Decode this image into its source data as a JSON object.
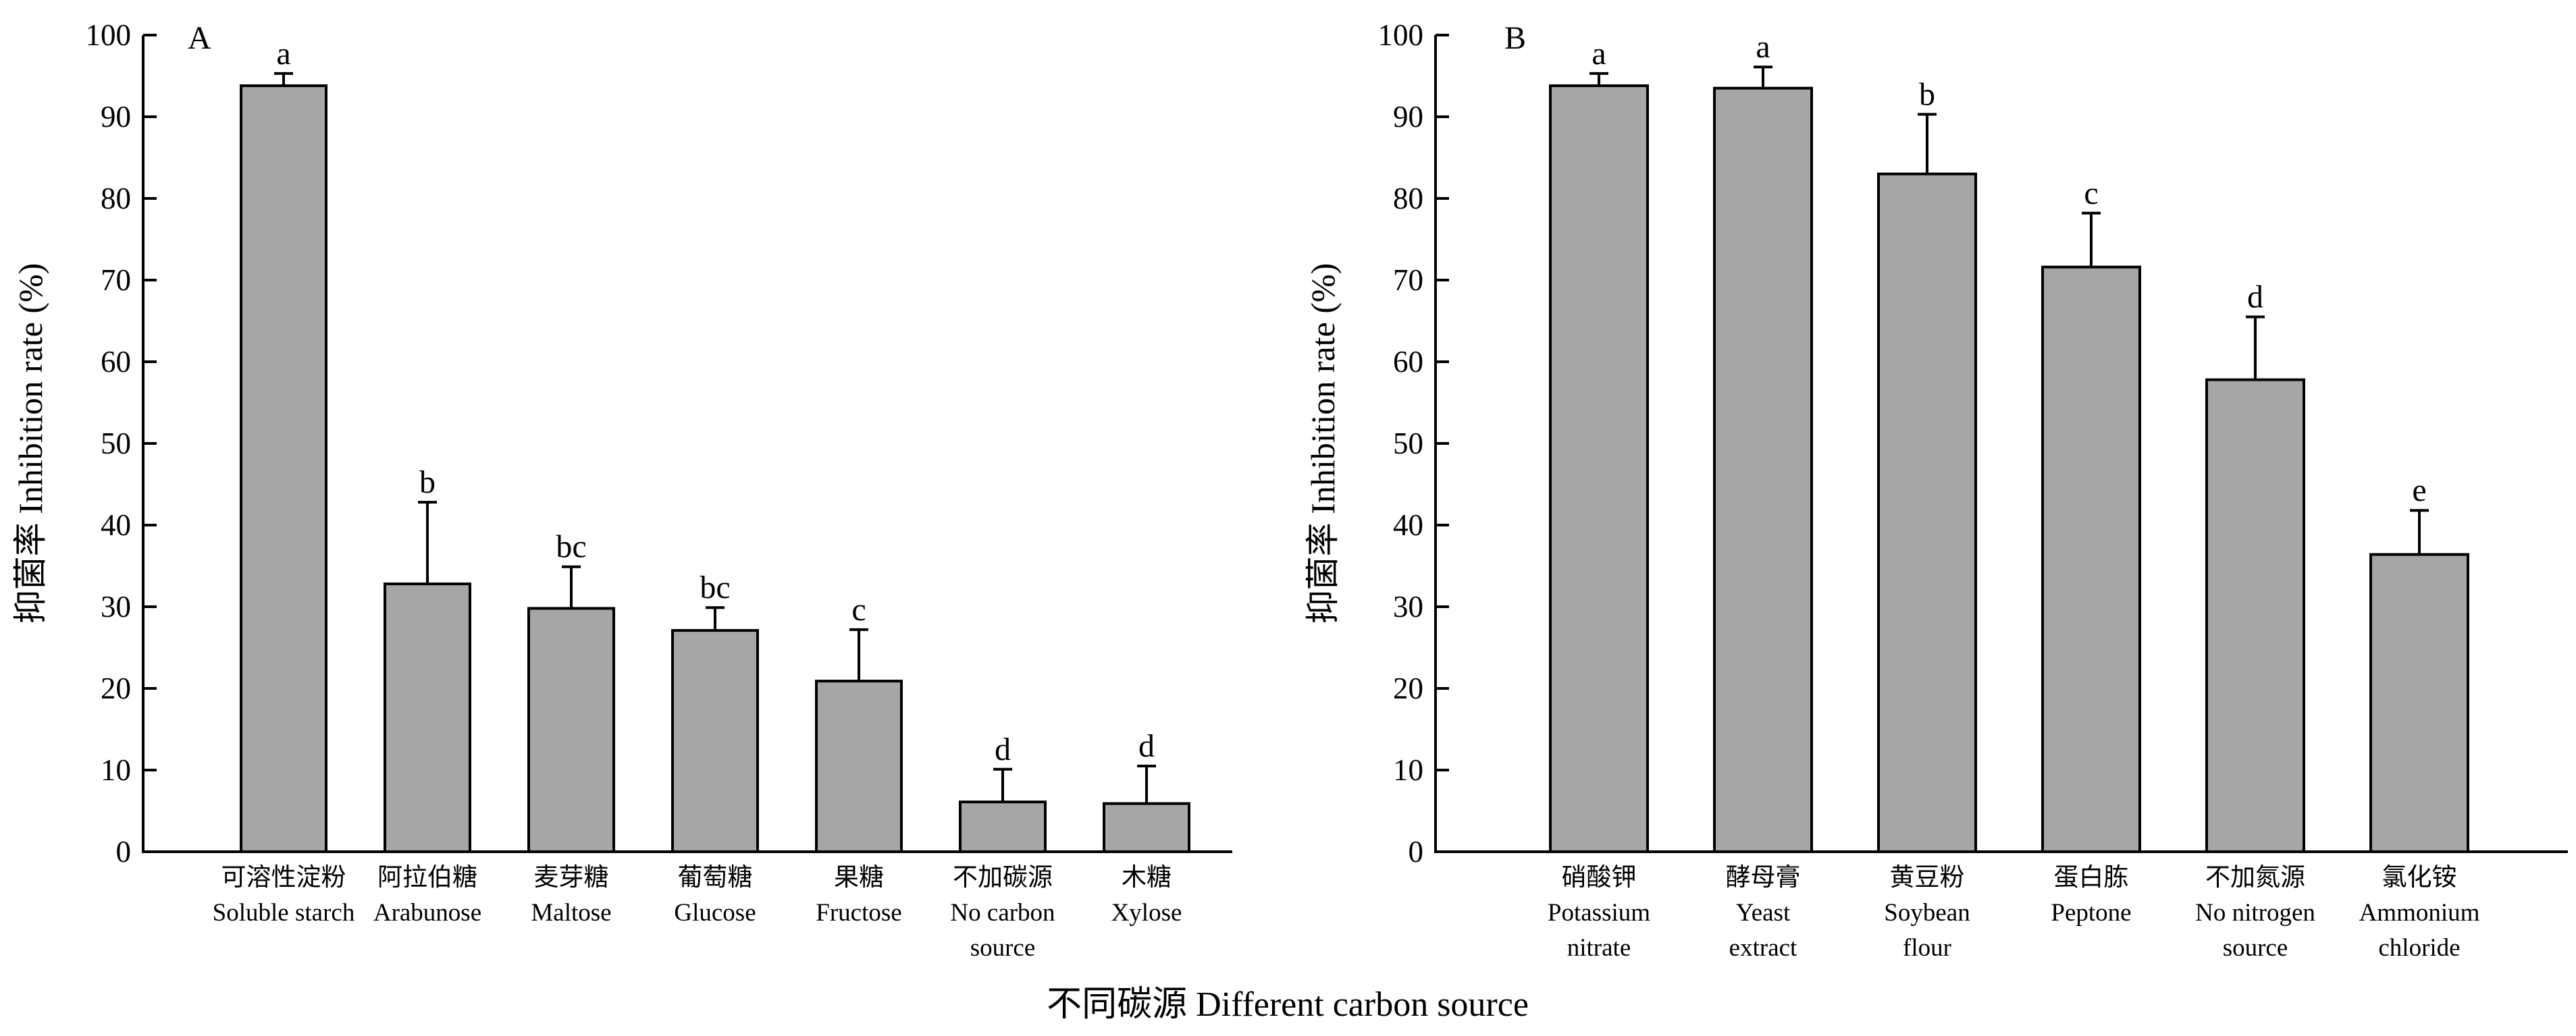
{
  "figure": {
    "common_xlabel": "不同碳源 Different carbon source"
  },
  "chart_data": [
    {
      "type": "bar",
      "panel_label": "A",
      "ylabel": "抑菌率 Inhibition rate (%)",
      "ylim": [
        0,
        100
      ],
      "yticks": [
        0,
        10,
        20,
        30,
        40,
        50,
        60,
        70,
        80,
        90,
        100
      ],
      "categories": [
        [
          "可溶性淀粉",
          "Soluble starch"
        ],
        [
          "阿拉伯糖",
          "Arabunose"
        ],
        [
          "麦芽糖",
          "Maltose"
        ],
        [
          "葡萄糖",
          "Glucose"
        ],
        [
          "果糖",
          "Fructose"
        ],
        [
          "不加碳源",
          "No carbon",
          "source"
        ],
        [
          "木糖",
          "Xylose"
        ]
      ],
      "values": [
        93.8,
        32.8,
        29.8,
        27.1,
        20.9,
        6.1,
        5.9
      ],
      "errors": [
        1.5,
        10.0,
        5.1,
        2.8,
        6.3,
        4.0,
        4.6
      ],
      "significance": [
        "a",
        "b",
        "bc",
        "bc",
        "c",
        "d",
        "d"
      ],
      "bar_color": "#a6a6a6",
      "grid": false
    },
    {
      "type": "bar",
      "panel_label": "B",
      "ylabel": "抑菌率 Inhibition rate (%)",
      "ylim": [
        0,
        100
      ],
      "yticks": [
        0,
        10,
        20,
        30,
        40,
        50,
        60,
        70,
        80,
        90,
        100
      ],
      "categories": [
        [
          "硝酸钾",
          "Potassium",
          "nitrate"
        ],
        [
          "酵母膏",
          "Yeast",
          "extract"
        ],
        [
          "黄豆粉",
          "Soybean",
          "flour"
        ],
        [
          "蛋白胨",
          "Peptone"
        ],
        [
          "不加氮源",
          "No nitrogen",
          "source"
        ],
        [
          "氯化铵",
          "Ammonium",
          "chloride"
        ]
      ],
      "values": [
        93.8,
        93.5,
        83.0,
        71.6,
        57.8,
        36.4
      ],
      "errors": [
        1.5,
        2.6,
        7.3,
        6.6,
        7.7,
        5.4
      ],
      "significance": [
        "a",
        "a",
        "b",
        "c",
        "d",
        "e"
      ],
      "bar_color": "#a6a6a6",
      "grid": false
    }
  ]
}
